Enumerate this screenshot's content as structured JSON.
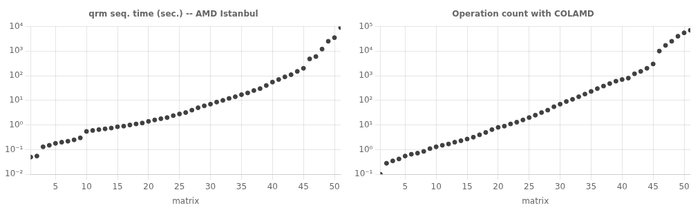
{
  "chart_data": [
    {
      "type": "scatter",
      "title": "qrm seq. time (sec.) -- AMD Istanbul",
      "x_label": "matrix",
      "log": "y",
      "grid": true,
      "xlim": [
        1,
        51
      ],
      "xticks": [
        5,
        10,
        15,
        20,
        25,
        30,
        35,
        40,
        45,
        50
      ],
      "ylim": [
        0.01,
        10000
      ],
      "yticks": [
        {
          "value": 0.01,
          "label": "10⁻²"
        },
        {
          "value": 0.1,
          "label": "10⁻¹"
        },
        {
          "value": 1,
          "label": "10⁰"
        },
        {
          "value": 10,
          "label": "10¹"
        },
        {
          "value": 100,
          "label": "10²"
        },
        {
          "value": 1000,
          "label": "10³"
        },
        {
          "value": 10000,
          "label": "10⁴"
        }
      ],
      "x": [
        1,
        2,
        3,
        4,
        5,
        6,
        7,
        8,
        9,
        10,
        11,
        12,
        13,
        14,
        15,
        16,
        17,
        18,
        19,
        20,
        21,
        22,
        23,
        24,
        25,
        26,
        27,
        28,
        29,
        30,
        31,
        32,
        33,
        34,
        35,
        36,
        37,
        38,
        39,
        40,
        41,
        42,
        43,
        44,
        45,
        46,
        47,
        48,
        49,
        50,
        51
      ],
      "series": [
        {
          "color": "#404040",
          "marker": "circle",
          "values": [
            0.05,
            0.055,
            0.13,
            0.15,
            0.18,
            0.2,
            0.22,
            0.25,
            0.3,
            0.55,
            0.6,
            0.65,
            0.7,
            0.75,
            0.85,
            0.9,
            1.0,
            1.1,
            1.2,
            1.4,
            1.6,
            1.8,
            2.0,
            2.4,
            2.8,
            3.2,
            4.0,
            5.0,
            6.0,
            7.0,
            8.5,
            10,
            12,
            14,
            17,
            20,
            25,
            30,
            40,
            55,
            70,
            90,
            110,
            150,
            200,
            480,
            600,
            1200,
            2500,
            3500,
            9000
          ]
        }
      ]
    },
    {
      "type": "scatter",
      "title": "Operation count with COLAMD",
      "x_label": "matrix",
      "log": "y",
      "grid": true,
      "xlim": [
        1,
        51
      ],
      "xticks": [
        5,
        10,
        15,
        20,
        25,
        30,
        35,
        40,
        45,
        50
      ],
      "ylim": [
        0.1,
        100000
      ],
      "yticks": [
        {
          "value": 0.1,
          "label": "10⁻¹"
        },
        {
          "value": 1,
          "label": "10⁰"
        },
        {
          "value": 10,
          "label": "10¹"
        },
        {
          "value": 100,
          "label": "10²"
        },
        {
          "value": 1000,
          "label": "10³"
        },
        {
          "value": 10000,
          "label": "10⁴"
        },
        {
          "value": 100000,
          "label": "10⁵"
        }
      ],
      "x": [
        1,
        2,
        3,
        4,
        5,
        6,
        7,
        8,
        9,
        10,
        11,
        12,
        13,
        14,
        15,
        16,
        17,
        18,
        19,
        20,
        21,
        22,
        23,
        24,
        25,
        26,
        27,
        28,
        29,
        30,
        31,
        32,
        33,
        34,
        35,
        36,
        37,
        38,
        39,
        40,
        41,
        42,
        43,
        44,
        45,
        46,
        47,
        48,
        49,
        50,
        51
      ],
      "series": [
        {
          "color": "#404040",
          "marker": "circle",
          "values": [
            0.1,
            0.28,
            0.35,
            0.42,
            0.55,
            0.65,
            0.72,
            0.85,
            1.1,
            1.3,
            1.5,
            1.7,
            2.0,
            2.3,
            2.7,
            3.2,
            4.0,
            5.0,
            6.5,
            8.0,
            9.0,
            11,
            13,
            16,
            20,
            25,
            32,
            40,
            55,
            70,
            90,
            110,
            140,
            180,
            230,
            300,
            380,
            480,
            600,
            700,
            800,
            1200,
            1500,
            2000,
            3000,
            10000,
            17000,
            25000,
            40000,
            55000,
            70000
          ]
        }
      ]
    }
  ]
}
